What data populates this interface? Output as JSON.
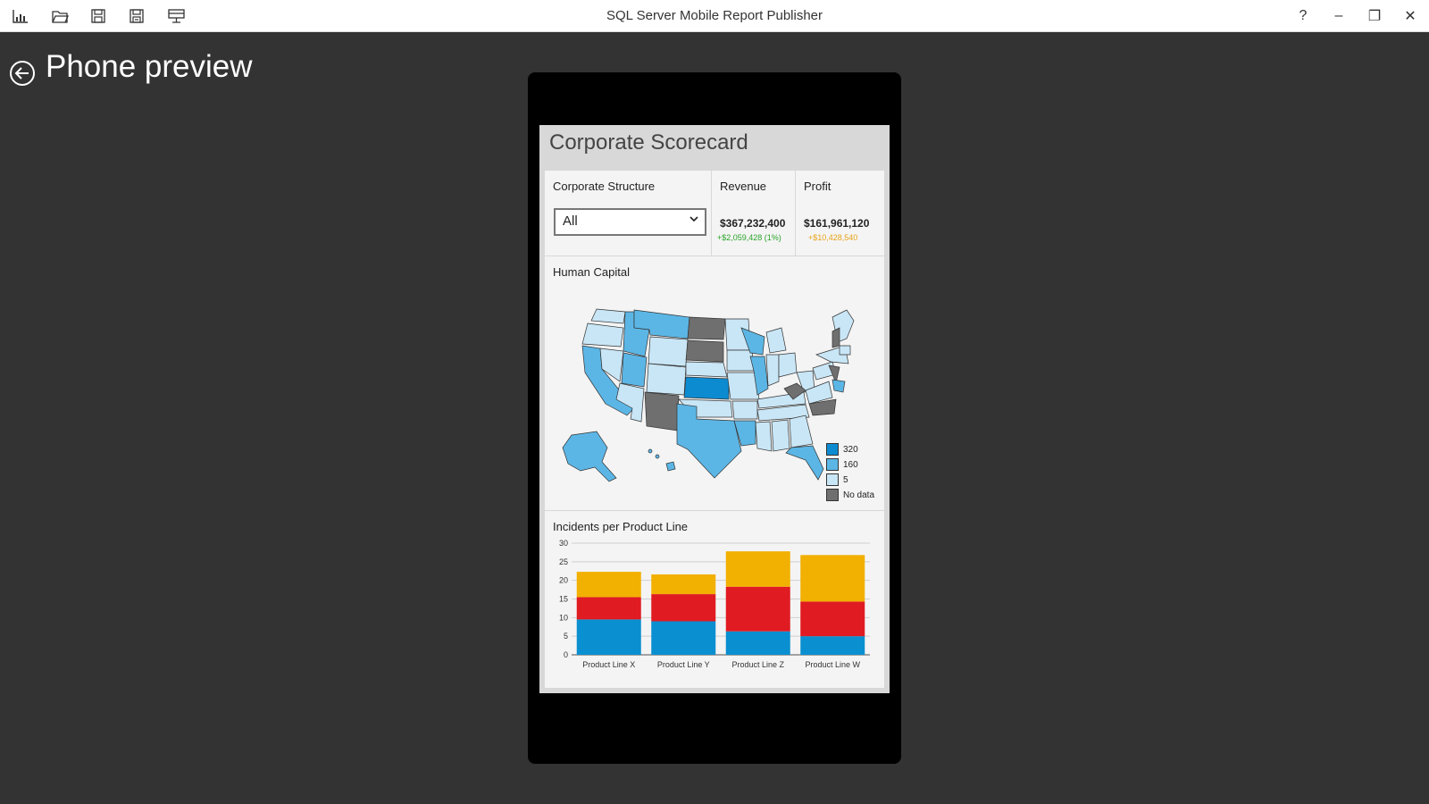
{
  "toolbar": {
    "icons": [
      "new-report-icon",
      "open-icon",
      "save-icon",
      "save-as-icon",
      "publish-icon"
    ]
  },
  "window": {
    "title": "SQL Server Mobile Report Publisher",
    "help_label": "?",
    "minimize_label": "–",
    "restore_label": "❐",
    "close_label": "✕"
  },
  "page": {
    "title": "Phone preview"
  },
  "report": {
    "title": "Corporate Scorecard",
    "structure": {
      "label": "Corporate Structure",
      "selected": "All"
    },
    "revenue": {
      "label": "Revenue",
      "value": "$367,232,400",
      "delta": "+$2,059,428 (1%)",
      "delta_color": "#2aa32a"
    },
    "profit": {
      "label": "Profit",
      "value": "$161,961,120",
      "delta": "+$10,428,540",
      "delta_color": "#e8a317"
    },
    "map": {
      "label": "Human Capital",
      "legend": [
        {
          "label": "320",
          "color": "#0d8bd1"
        },
        {
          "label": "160",
          "color": "#5cb6e5"
        },
        {
          "label": "5",
          "color": "#c9e6f6"
        },
        {
          "label": "No data",
          "color": "#6f6f6f"
        }
      ]
    }
  },
  "chart_data": {
    "type": "bar",
    "stacked": true,
    "title": "Incidents per Product Line",
    "categories": [
      "Product Line X",
      "Product Line Y",
      "Product Line Z",
      "Product Line W"
    ],
    "series": [
      {
        "color": "#0a8fd0",
        "values": [
          9.5,
          9,
          6.3,
          5
        ]
      },
      {
        "color": "#e01b22",
        "values": [
          6,
          7.3,
          12,
          9.3
        ]
      },
      {
        "color": "#f2b000",
        "values": [
          6.8,
          5.3,
          9.5,
          12.5
        ]
      }
    ],
    "yticks": [
      0,
      5,
      10,
      15,
      20,
      25,
      30
    ],
    "ylim": [
      0,
      30
    ],
    "grid": true
  }
}
